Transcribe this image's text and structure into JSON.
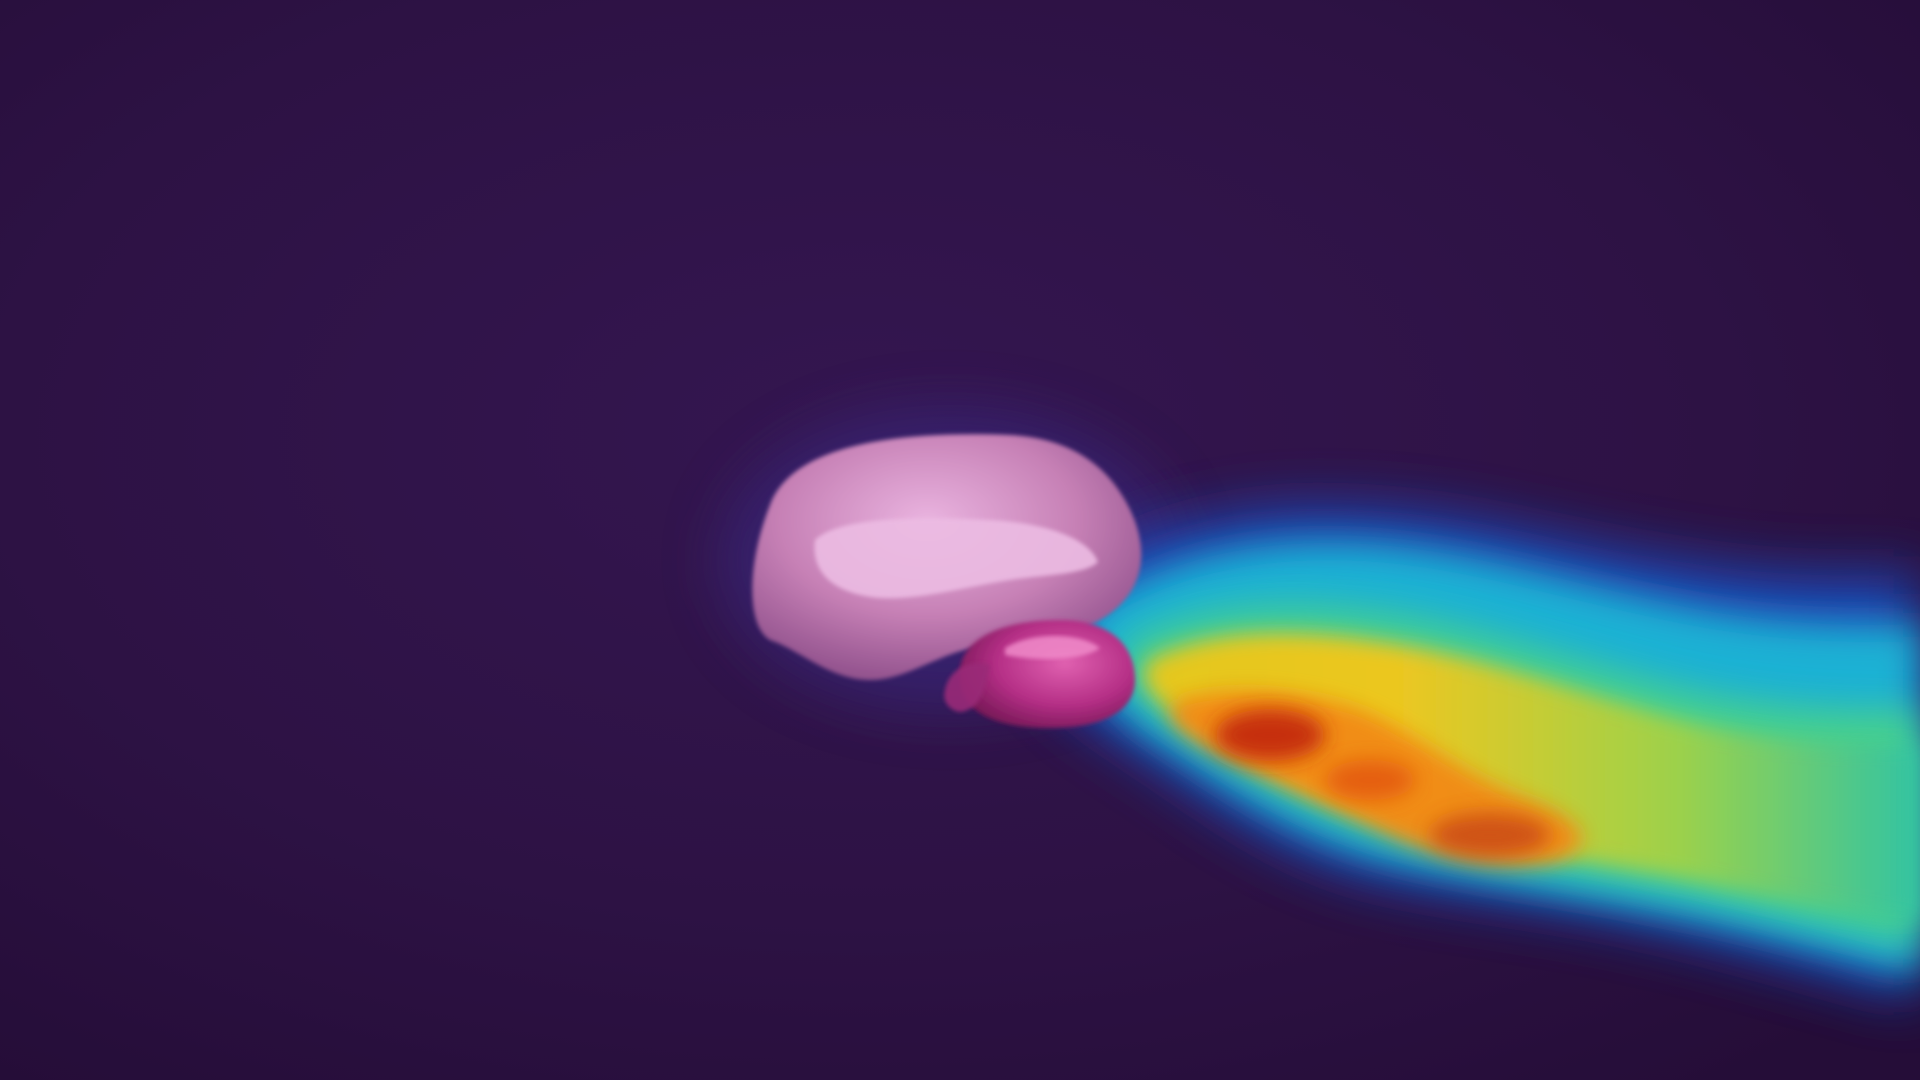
{
  "scene": {
    "subject": "flow-visualization",
    "colors": {
      "background": "#2b1140",
      "background_light": "#321448",
      "halo": "#3a2a7a",
      "wake_blue": "#1f4fc4",
      "wake_cyan": "#1fb7d6",
      "wake_green": "#49d28a",
      "wake_yellow": "#e9d21c",
      "wake_orange": "#f28a12",
      "wake_red": "#c42b0f",
      "body_main": "#c97fb6",
      "body_highlight": "#e9b3df",
      "body_shadow": "#8b4c88",
      "cup_main": "#c2388f",
      "cup_dark": "#7e1a5c"
    },
    "icons": {
      "main_body": "rounded-blob-shape",
      "attached_part": "cup-shape",
      "wake": "turbulent-plume"
    }
  }
}
